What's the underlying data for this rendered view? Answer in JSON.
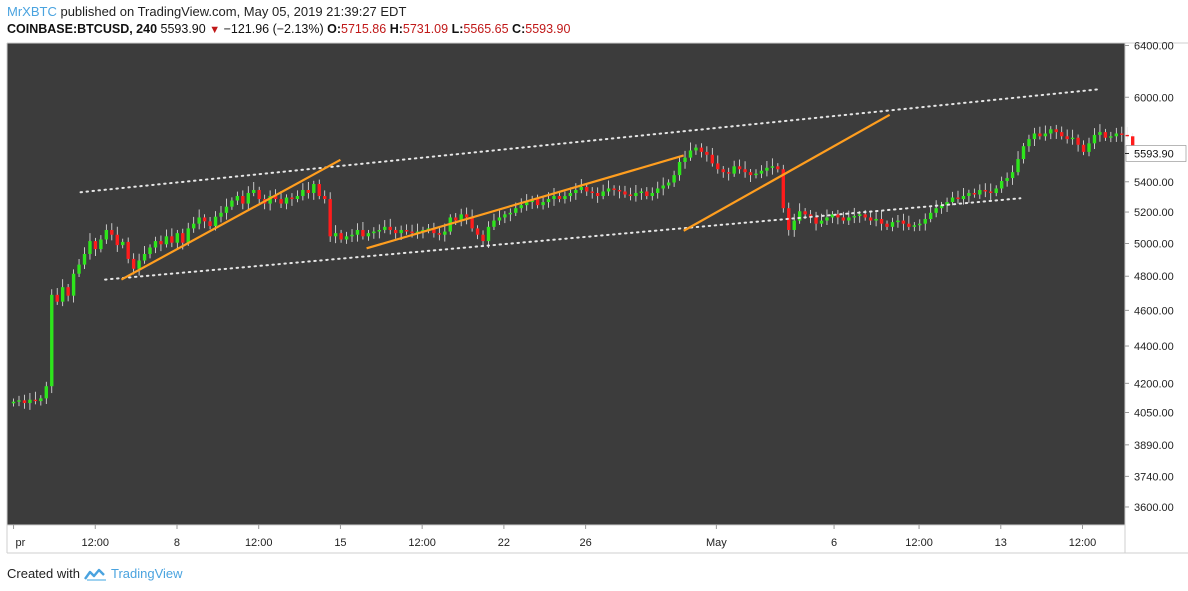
{
  "header": {
    "author": "MrXBTC",
    "published_text": "published on TradingView.com, May 05, 2019 21:39:27 EDT",
    "symbol": "COINBASE:BTCUSD, 240",
    "last_price": "5593.90",
    "change_arrow": "▼",
    "change": "−121.96 (−2.13%)",
    "o_label": "O:",
    "o_value": "5715.86",
    "h_label": "H:",
    "h_value": "5731.09",
    "l_label": "L:",
    "l_value": "5565.65",
    "c_label": "C:",
    "c_value": "5593.90"
  },
  "footer": {
    "created_with": "Created with",
    "brand": "TradingView"
  },
  "colors": {
    "background": "#3c3c3c",
    "up": "#2ee51c",
    "down": "#ff1c1c",
    "trendline": "#ff9e1f",
    "channel": "#e6e6e6",
    "price_label": "#ffffff"
  },
  "chart_data": {
    "type": "candlestick",
    "symbol": "COINBASE:BTCUSD",
    "interval": "240",
    "scale": "log",
    "y_axis_ticks": [
      3600,
      3740,
      3890,
      4050,
      4200,
      4400,
      4600,
      4800,
      5000,
      5200,
      5400,
      6000,
      6400
    ],
    "y_tick_labels": [
      "3600.00",
      "3740.00",
      "3890.00",
      "4050.00",
      "4200.00",
      "4400.00",
      "4600.00",
      "4800.00",
      "5000.00",
      "5200.00",
      "5400.00",
      "6000.00",
      "6400.00"
    ],
    "ylim": [
      3520,
      6420
    ],
    "current_price_label": "5593.90",
    "x_tick_labels": [
      {
        "label": "pr",
        "t": 0
      },
      {
        "label": "12:00",
        "t": 2.5
      },
      {
        "label": "8",
        "t": 5
      },
      {
        "label": "12:00",
        "t": 7.5
      },
      {
        "label": "15",
        "t": 10
      },
      {
        "label": "12:00",
        "t": 12.5
      },
      {
        "label": "22",
        "t": 15
      },
      {
        "label": "26",
        "t": 17.5
      },
      {
        "label": "May",
        "t": 21.5
      },
      {
        "label": "6",
        "t": 25.1
      },
      {
        "label": "12:00",
        "t": 27.7
      },
      {
        "label": "13",
        "t": 30.2
      },
      {
        "label": "12:00",
        "t": 32.7
      }
    ],
    "xlim": [
      -0.2,
      34
    ],
    "candles_t_start": 0,
    "candles_t_step": 0.167,
    "closes": [
      4105,
      4112,
      4098,
      4115,
      4108,
      4122,
      4185,
      4690,
      4650,
      4735,
      4685,
      4815,
      4870,
      4935,
      5015,
      4965,
      5025,
      5085,
      5055,
      4990,
      5010,
      4905,
      4845,
      4895,
      4935,
      4975,
      5015,
      4995,
      5045,
      5005,
      5065,
      5005,
      5095,
      5125,
      5165,
      5140,
      5110,
      5170,
      5195,
      5235,
      5275,
      5305,
      5255,
      5325,
      5345,
      5285,
      5255,
      5305,
      5285,
      5255,
      5295,
      5285,
      5305,
      5345,
      5325,
      5385,
      5305,
      5285,
      5045,
      5065,
      5025,
      5045,
      5055,
      5085,
      5045,
      5065,
      5075,
      5085,
      5105,
      5085,
      5065,
      5085,
      5075,
      5065,
      5075,
      5085,
      5095,
      5065,
      5055,
      5075,
      5165,
      5145,
      5185,
      5165,
      5095,
      5055,
      5015,
      5105,
      5145,
      5165,
      5185,
      5195,
      5225,
      5245,
      5265,
      5285,
      5245,
      5265,
      5285,
      5305,
      5285,
      5305,
      5325,
      5345,
      5365,
      5335,
      5325,
      5305,
      5335,
      5355,
      5345,
      5335,
      5315,
      5305,
      5325,
      5335,
      5305,
      5325,
      5355,
      5375,
      5395,
      5445,
      5535,
      5565,
      5615,
      5635,
      5605,
      5585,
      5525,
      5485,
      5465,
      5455,
      5505,
      5485,
      5465,
      5445,
      5455,
      5475,
      5495,
      5505,
      5485,
      5225,
      5085,
      5145,
      5205,
      5185,
      5165,
      5125,
      5145,
      5165,
      5185,
      5165,
      5145,
      5165,
      5175,
      5185,
      5165,
      5145,
      5155,
      5125,
      5105,
      5135,
      5145,
      5125,
      5105,
      5115,
      5125,
      5155,
      5195,
      5225,
      5245,
      5265,
      5295,
      5285,
      5305,
      5325,
      5315,
      5345,
      5335,
      5325,
      5355,
      5405,
      5425,
      5465,
      5555,
      5645,
      5695,
      5735,
      5715,
      5735,
      5765,
      5745,
      5715,
      5695,
      5705,
      5655,
      5605,
      5665,
      5725,
      5745,
      5705,
      5715,
      5735,
      5725,
      5715,
      5594
    ],
    "channel_lines": [
      {
        "name": "channel-upper",
        "t1": 2.05,
        "p1": 5330,
        "t2": 33.2,
        "p2": 6060
      },
      {
        "name": "channel-lower",
        "t1": 2.8,
        "p1": 4780,
        "t2": 30.8,
        "p2": 5290
      }
    ],
    "trendlines": [
      {
        "t1": 3.3,
        "p1": 4780,
        "t2": 10.0,
        "p2": 5550
      },
      {
        "t1": 10.8,
        "p1": 4970,
        "t2": 20.5,
        "p2": 5580
      },
      {
        "t1": 20.5,
        "p1": 5080,
        "t2": 26.8,
        "p2": 5870
      }
    ]
  }
}
